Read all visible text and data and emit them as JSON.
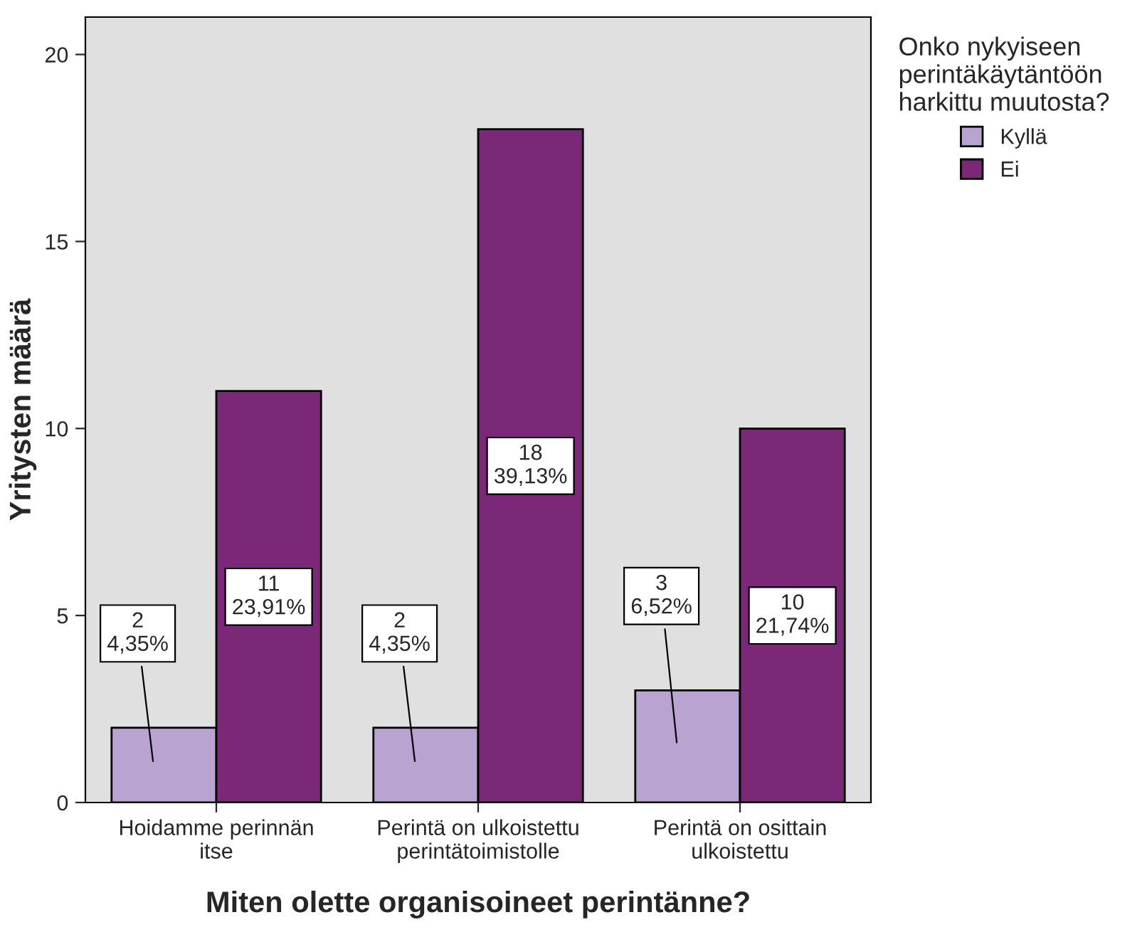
{
  "chart_data": {
    "type": "bar",
    "xlabel": "Miten olette organisoineet perintänne?",
    "ylabel": "Yritysten määrä",
    "legend_title": "Onko nykyiseen\nperintäkäytäntöön\nharkittu muutosta?",
    "categories": [
      "Hoidamme perinnän\nitse",
      "Perintä on ulkoistettu\nperintätoimistolle",
      "Perintä on osittain\nulkoistettu"
    ],
    "series": [
      {
        "name": "Kyllä",
        "color": "#b9a3d1",
        "values": [
          2,
          2,
          3
        ],
        "value_labels": [
          "2\n4,35%",
          "2\n4,35%",
          "3\n6,52%"
        ]
      },
      {
        "name": "Ei",
        "color": "#7b2878",
        "values": [
          11,
          18,
          10
        ],
        "value_labels": [
          "11\n23,91%",
          "18\n39,13%",
          "10\n21,74%"
        ]
      }
    ],
    "ylim": [
      0,
      21
    ],
    "yticks": [
      0,
      5,
      10,
      15,
      20
    ],
    "grid": false,
    "legend": "top right"
  }
}
